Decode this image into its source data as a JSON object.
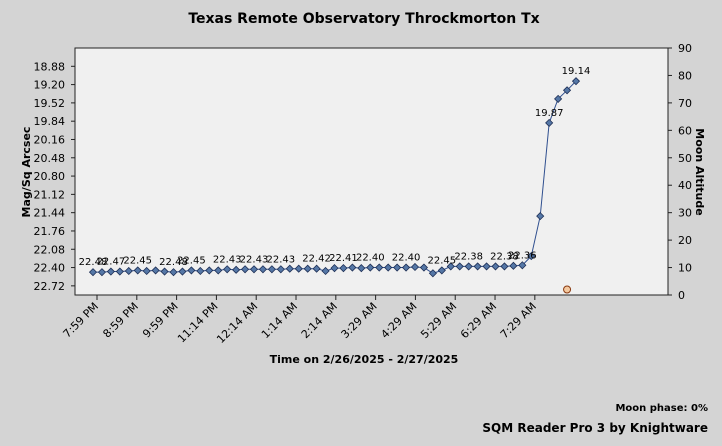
{
  "chart_data": {
    "type": "line",
    "title": "Texas Remote Observatory   Throckmorton Tx",
    "xlabel": "Time on 2/26/2025 - 2/27/2025",
    "ylabel": "Mag/Sq Arcsec",
    "y2label": "Moon Altitude",
    "y_ticks": [
      "18.88",
      "19.20",
      "19.52",
      "19.84",
      "20.16",
      "20.48",
      "20.80",
      "21.12",
      "21.44",
      "21.76",
      "22.08",
      "22.40",
      "22.72"
    ],
    "ylim": [
      22.88,
      18.56
    ],
    "y2_ticks": [
      "90",
      "80",
      "70",
      "60",
      "50",
      "40",
      "30",
      "20",
      "10",
      "0"
    ],
    "y2lim": [
      0,
      90
    ],
    "x_ticks": [
      "7:59 PM",
      "8:59 PM",
      "9:59 PM",
      "11:14 PM",
      "12:14 AM",
      "1:14 AM",
      "2:14 AM",
      "3:29 AM",
      "4:29 AM",
      "5:29 AM",
      "6:29 AM",
      "7:29 AM"
    ],
    "series": [
      {
        "color": "#2f4f8f",
        "values": [
          22.48,
          22.48,
          22.47,
          22.47,
          22.46,
          22.45,
          22.46,
          22.45,
          22.47,
          22.48,
          22.47,
          22.45,
          22.46,
          22.45,
          22.45,
          22.43,
          22.44,
          22.43,
          22.43,
          22.43,
          22.43,
          22.43,
          22.42,
          22.42,
          22.42,
          22.42,
          22.46,
          22.41,
          22.41,
          22.4,
          22.41,
          22.4,
          22.4,
          22.4,
          22.4,
          22.4,
          22.39,
          22.4,
          22.5,
          22.45,
          22.38,
          22.38,
          22.38,
          22.38,
          22.38,
          22.38,
          22.38,
          22.37,
          22.36,
          22.2,
          21.5,
          19.87,
          19.45,
          19.3,
          19.14
        ]
      }
    ],
    "point_labels": [
      {
        "i": 0,
        "text": "22.48"
      },
      {
        "i": 2,
        "text": "22.47"
      },
      {
        "i": 5,
        "text": "22.45"
      },
      {
        "i": 9,
        "text": "22.48"
      },
      {
        "i": 11,
        "text": "22.45"
      },
      {
        "i": 15,
        "text": "22.43"
      },
      {
        "i": 18,
        "text": "22.43"
      },
      {
        "i": 21,
        "text": "22.43"
      },
      {
        "i": 25,
        "text": "22.42"
      },
      {
        "i": 28,
        "text": "22.41"
      },
      {
        "i": 31,
        "text": "22.40"
      },
      {
        "i": 35,
        "text": "22.40"
      },
      {
        "i": 39,
        "text": "22.45"
      },
      {
        "i": 42,
        "text": "22.38"
      },
      {
        "i": 46,
        "text": "22.38"
      },
      {
        "i": 48,
        "text": "22.36"
      },
      {
        "i": 51,
        "text": "19.87"
      },
      {
        "i": 54,
        "text": "19.14"
      }
    ],
    "moon_altitude": [
      {
        "i": 53,
        "value": 2
      }
    ],
    "grid": false,
    "legend": "none"
  },
  "footer": {
    "moon_phase": "Moon phase: 0%",
    "credit": "SQM Reader Pro 3 by Knightware"
  }
}
